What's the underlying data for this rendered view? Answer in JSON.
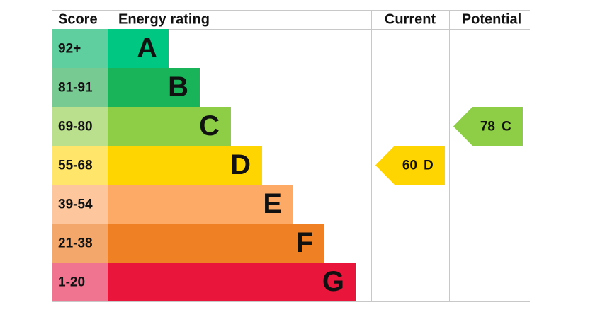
{
  "headers": {
    "score": "Score",
    "rating": "Energy rating",
    "current": "Current",
    "potential": "Potential"
  },
  "bands": [
    {
      "score": "92+",
      "letter": "A",
      "color": "#00c781",
      "light": "#5fcfa0"
    },
    {
      "score": "81-91",
      "letter": "B",
      "color": "#19b459",
      "light": "#76ca92"
    },
    {
      "score": "69-80",
      "letter": "C",
      "color": "#8dce46",
      "light": "#bbe08d"
    },
    {
      "score": "55-68",
      "letter": "D",
      "color": "#ffd500",
      "light": "#ffe56a"
    },
    {
      "score": "39-54",
      "letter": "E",
      "color": "#fcaa65",
      "light": "#fdc69c"
    },
    {
      "score": "21-38",
      "letter": "F",
      "color": "#ef8023",
      "light": "#f4a76a"
    },
    {
      "score": "1-20",
      "letter": "G",
      "color": "#e9153b",
      "light": "#f07390"
    }
  ],
  "current": {
    "value": 60,
    "letter": "D"
  },
  "potential": {
    "value": 78,
    "letter": "C"
  }
}
